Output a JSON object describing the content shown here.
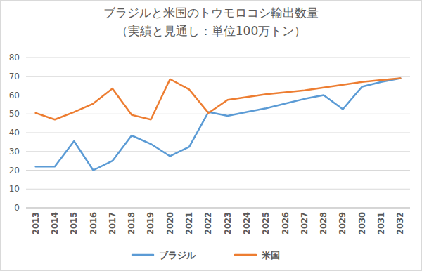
{
  "chart_data": {
    "type": "line",
    "title": "ブラジルと米国のトウモロコシ輸出数量",
    "subtitle": "（実績と見通し：単位100万トン）",
    "categories": [
      "2013",
      "2014",
      "2015",
      "2016",
      "2017",
      "2018",
      "2019",
      "2020",
      "2021",
      "2022",
      "2023",
      "2024",
      "2025",
      "2026",
      "2027",
      "2028",
      "2029",
      "2030",
      "2031",
      "2032"
    ],
    "series": [
      {
        "name": "ブラジル",
        "color": "#5b9bd5",
        "values": [
          22,
          22,
          35.5,
          20,
          25,
          38.5,
          34,
          27.5,
          32.5,
          51,
          49,
          51,
          53,
          55.5,
          58,
          60,
          52.5,
          64.5,
          67,
          69
        ]
      },
      {
        "name": "米国",
        "color": "#ed7d31",
        "values": [
          50.5,
          47,
          51,
          55.5,
          63.5,
          49.5,
          47,
          68.5,
          63,
          50.5,
          57.5,
          59,
          60.5,
          61.5,
          62.5,
          64,
          65.5,
          67,
          68,
          69
        ]
      }
    ],
    "ylim": [
      0,
      80
    ],
    "yticks": [
      0,
      10,
      20,
      30,
      40,
      50,
      60,
      70,
      80
    ],
    "grid": true,
    "legend": "bottom"
  }
}
